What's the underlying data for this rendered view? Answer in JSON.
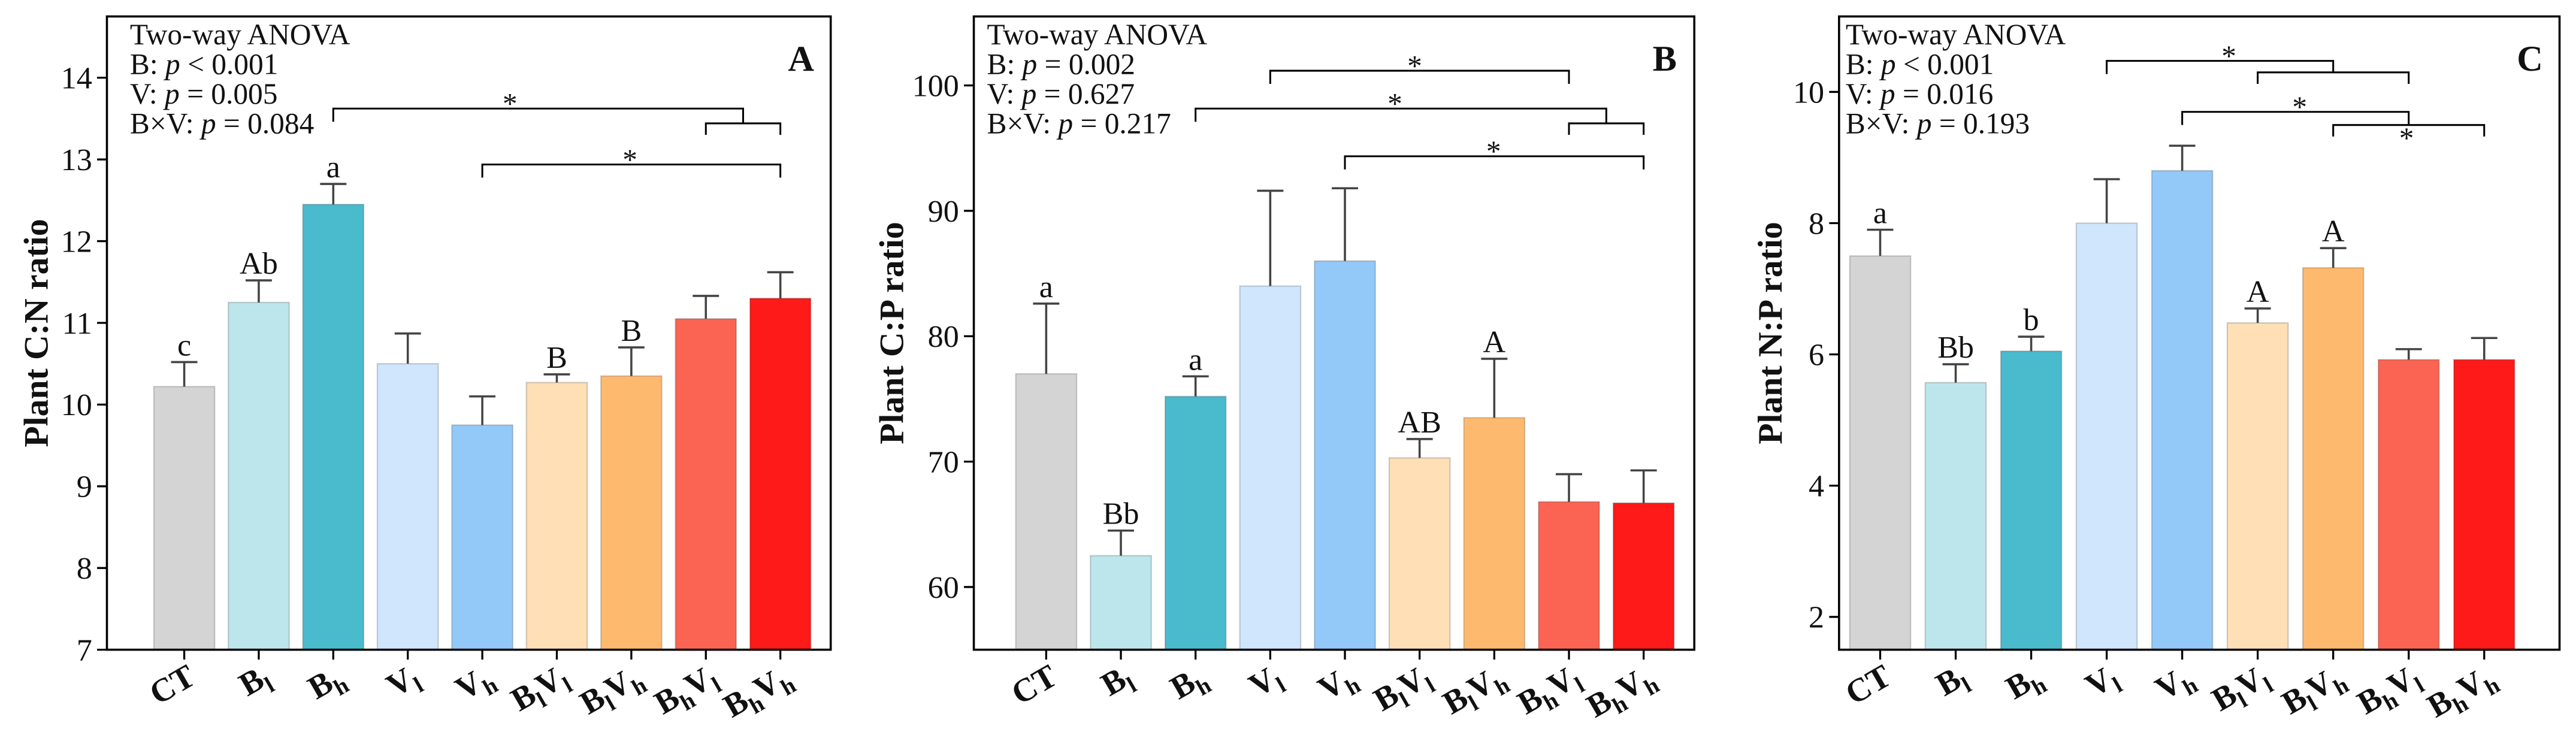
{
  "chart_data": [
    {
      "panel_label": "A",
      "type": "bar",
      "ylabel": "Plant C:N ratio",
      "ylim": [
        7,
        14.75
      ],
      "yticks": [
        7,
        8,
        9,
        10,
        11,
        12,
        13,
        14
      ],
      "categories": [
        "CT",
        "Bl",
        "Bh",
        "Vl",
        "Vh",
        "BlVl",
        "BlVh",
        "BhVl",
        "BhVh"
      ],
      "values": [
        10.22,
        11.25,
        12.45,
        10.5,
        9.75,
        10.27,
        10.35,
        11.05,
        11.3
      ],
      "errors": [
        0.3,
        0.27,
        0.25,
        0.37,
        0.35,
        0.1,
        0.35,
        0.28,
        0.32
      ],
      "letters": [
        "c",
        "Ab",
        "a",
        null,
        null,
        "B",
        "B",
        null,
        null
      ],
      "anova": {
        "title": "Two-way ANOVA",
        "lines": [
          "B: p < 0.001",
          "V: p = 0.005",
          "B×V: p = 0.084"
        ]
      },
      "comparisons": [
        {
          "from": 2,
          "to": [
            7,
            8
          ],
          "label": "*"
        },
        {
          "from": 4,
          "to": [
            8
          ],
          "label": "*"
        }
      ]
    },
    {
      "panel_label": "B",
      "type": "bar",
      "ylabel": "Plant C:P ratio",
      "ylim": [
        55,
        105.5
      ],
      "yticks": [
        60,
        70,
        80,
        90,
        100
      ],
      "categories": [
        "CT",
        "Bl",
        "Bh",
        "Vl",
        "Vh",
        "BlVl",
        "BlVh",
        "BhVl",
        "BhVh"
      ],
      "values": [
        77,
        62.5,
        75.2,
        84,
        86,
        70.3,
        73.5,
        66.8,
        66.7
      ],
      "errors": [
        5.6,
        2.0,
        1.6,
        7.6,
        5.8,
        1.5,
        4.7,
        2.2,
        2.6
      ],
      "letters": [
        "a",
        "Bb",
        "a",
        null,
        null,
        "AB",
        "A",
        null,
        null
      ],
      "anova": {
        "title": "Two-way ANOVA",
        "lines": [
          "B: p = 0.002",
          "V: p = 0.627",
          "B×V: p = 0.217"
        ]
      },
      "comparisons": [
        {
          "from": 3,
          "to": [
            7
          ],
          "label": "*"
        },
        {
          "from": 2,
          "to": [
            7,
            8
          ],
          "label": "*"
        },
        {
          "from": 4,
          "to": [
            8
          ],
          "label": "*"
        }
      ]
    },
    {
      "panel_label": "C",
      "type": "bar",
      "ylabel": "Plant N:P ratio",
      "ylim": [
        1.5,
        11.15
      ],
      "yticks": [
        2,
        4,
        6,
        8,
        10
      ],
      "categories": [
        "CT",
        "Bl",
        "Bh",
        "Vl",
        "Vh",
        "BlVl",
        "BlVh",
        "BhVl",
        "BhVh"
      ],
      "values": [
        7.5,
        5.57,
        6.05,
        8.0,
        8.8,
        6.48,
        7.32,
        5.92,
        5.92
      ],
      "errors": [
        0.4,
        0.28,
        0.22,
        0.67,
        0.38,
        0.22,
        0.3,
        0.16,
        0.33
      ],
      "letters": [
        "a",
        "Bb",
        "b",
        null,
        null,
        "A",
        "A",
        null,
        null
      ],
      "anova": {
        "title": "Two-way ANOVA",
        "lines": [
          "B: p < 0.001",
          "V: p = 0.016",
          "B×V: p = 0.193"
        ]
      },
      "comparisons": [
        {
          "from": 3,
          "to": [
            5,
            7
          ],
          "label": "*"
        },
        {
          "from": 4,
          "to": [
            6,
            8
          ],
          "label": "*",
          "sub_label": "*"
        }
      ]
    }
  ],
  "colors": {
    "CT": "#d4d4d4",
    "Bl": "#bde6ec",
    "Bh": "#4abacd",
    "Vl": "#cfe6fd",
    "Vh": "#92c9f8",
    "BlVl": "#fedfb6",
    "BlVh": "#fdba6e",
    "BhVl": "#fb6352",
    "BhVh": "#ff1a1a",
    "axis": "#000000",
    "error": "#444444"
  }
}
